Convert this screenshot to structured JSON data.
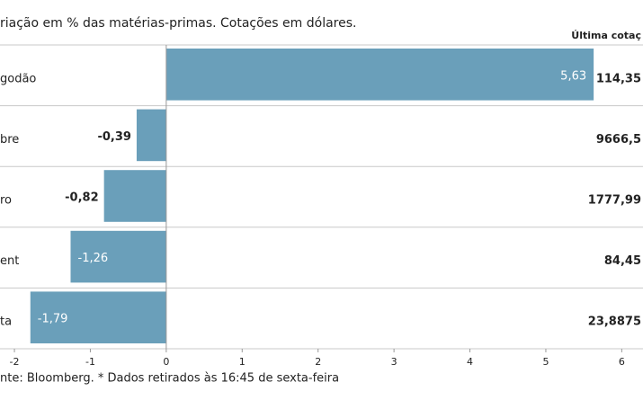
{
  "chart_data": {
    "type": "bar",
    "orientation": "horizontal",
    "title": "riação em % das matérias-primas. Cotações em dólares.",
    "categories": [
      "godão",
      "bre",
      "ro",
      "ent",
      "ta"
    ],
    "values": [
      5.63,
      -0.39,
      -0.82,
      -1.26,
      -1.79
    ],
    "value_labels": [
      "5,63",
      "-0,39",
      "-0,82",
      "-1,26",
      "-1,79"
    ],
    "color": "#6a9fba",
    "xlim": [
      -2.19,
      6.28
    ],
    "xticks": [
      -2,
      -1,
      0,
      1,
      2,
      3,
      4,
      5,
      6
    ],
    "last_price_header": "Última cotaç",
    "last_prices": [
      "114,35",
      "9666,5",
      "1777,99",
      "84,45",
      "23,8875"
    ],
    "source": "nte: Bloomberg.  * Dados retirados às 16:45 de sexta-feira"
  }
}
